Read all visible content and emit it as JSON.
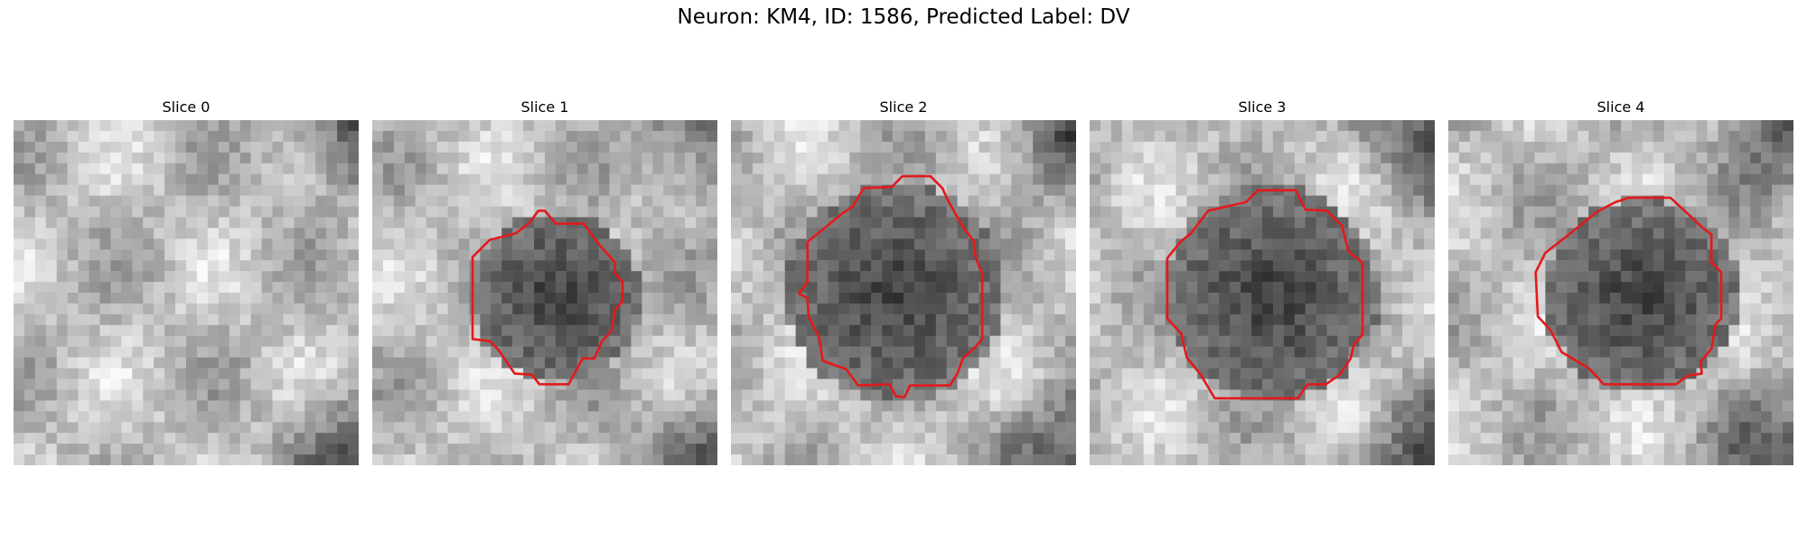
{
  "figure": {
    "title": "Neuron: KM4, ID: 1586, Predicted Label: DV",
    "outline_color": "#e31a1c"
  },
  "panels": [
    {
      "title": "Slice 0",
      "has_outline": false,
      "seed": 11,
      "dark_center": false
    },
    {
      "title": "Slice 1",
      "has_outline": true,
      "seed": 23,
      "dark_center": true
    },
    {
      "title": "Slice 2",
      "has_outline": true,
      "seed": 37,
      "dark_center": true
    },
    {
      "title": "Slice 3",
      "has_outline": true,
      "seed": 53,
      "dark_center": true
    },
    {
      "title": "Slice 4",
      "has_outline": true,
      "seed": 71,
      "dark_center": true
    }
  ]
}
